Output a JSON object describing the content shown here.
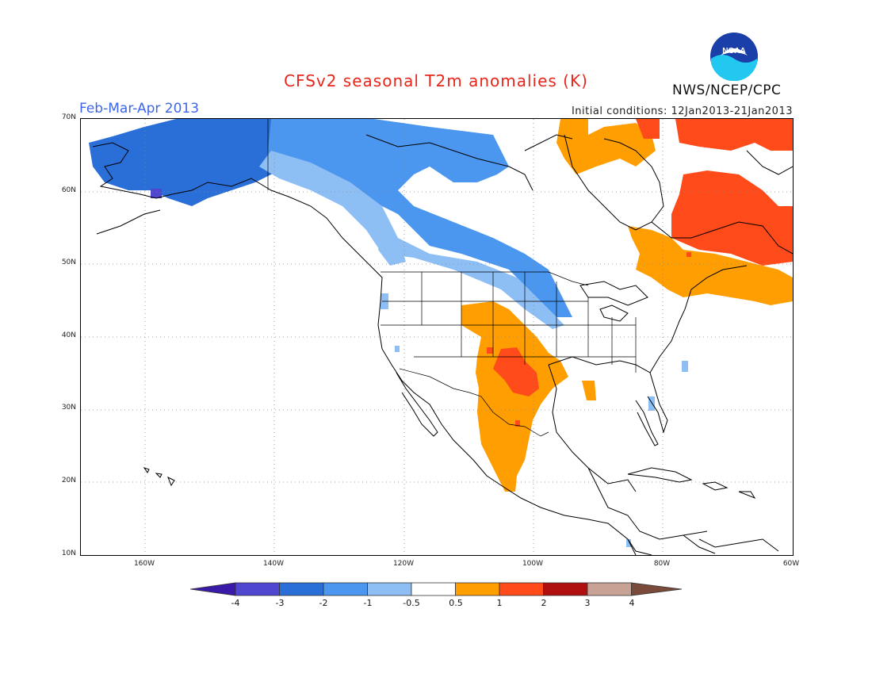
{
  "header": {
    "title": "CFSv2 seasonal T2m anomalies (K)",
    "period": "Feb-Mar-Apr 2013",
    "initial_conditions": "Initial conditions: 12Jan2013-21Jan2013",
    "agency": "NWS/NCEP/CPC",
    "logo_text": "NOAA"
  },
  "map": {
    "lat_labels": [
      "70N",
      "60N",
      "50N",
      "40N",
      "30N",
      "20N",
      "10N"
    ],
    "lon_labels": [
      "160W",
      "140W",
      "120W",
      "100W",
      "80W",
      "60W"
    ],
    "extent": {
      "lon": [
        -170,
        -60
      ],
      "lat": [
        10,
        70
      ]
    }
  },
  "legend": {
    "labels": [
      "-4",
      "-3",
      "-2",
      "-1",
      "-0.5",
      "0.5",
      "1",
      "2",
      "3",
      "4"
    ],
    "colors": [
      "#3a1aa8",
      "#4f47cf",
      "#2a6fd8",
      "#4b96ee",
      "#8dbff5",
      "#ffffff",
      "#ff9e00",
      "#ff4a1a",
      "#b00f0f",
      "#c7a295",
      "#7a4a3a"
    ],
    "units": "K"
  },
  "anomaly_colors": {
    "very_cold": "#2a6fd8",
    "cold": "#4b96ee",
    "cool": "#8dbff5",
    "warm": "#ff9e00",
    "hot": "#ff4a1a",
    "deep_cold": "#4f47cf"
  }
}
